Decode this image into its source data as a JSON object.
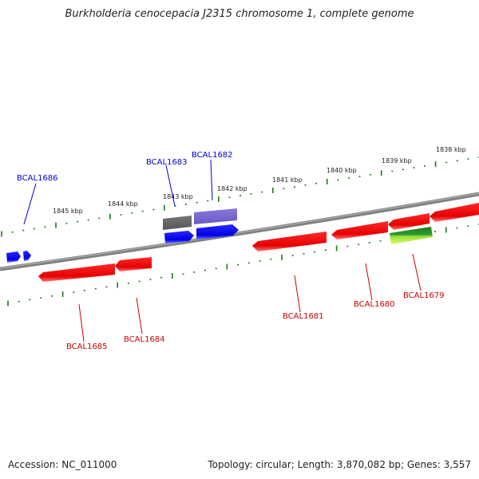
{
  "title": "Burkholderia cenocepacia J2315 chromosome 1, complete genome",
  "footer": {
    "accession": "Accession: NC_011000",
    "summary": "Topology: circular; Length: 3,870,082 bp; Genes: 3,557"
  },
  "colors": {
    "backbone": "#888888",
    "tick": "#1a7a1a",
    "forward_gene": "#0000ee",
    "reverse_gene": "#ee0000",
    "forward_label": "#0000cc",
    "reverse_label": "#cc0000"
  },
  "kbp_labels": [
    "1838 kbp",
    "1839 kbp",
    "1840 kbp",
    "1841 kbp",
    "1842 kbp",
    "1843 kbp",
    "1844 kbp",
    "1845 kbp"
  ],
  "genes": {
    "forward": [
      "BCAL1686",
      "BCAL1683",
      "BCAL1682"
    ],
    "reverse": [
      "BCAL1685",
      "BCAL1684",
      "BCAL1681",
      "BCAL1680",
      "BCAL1679"
    ]
  }
}
